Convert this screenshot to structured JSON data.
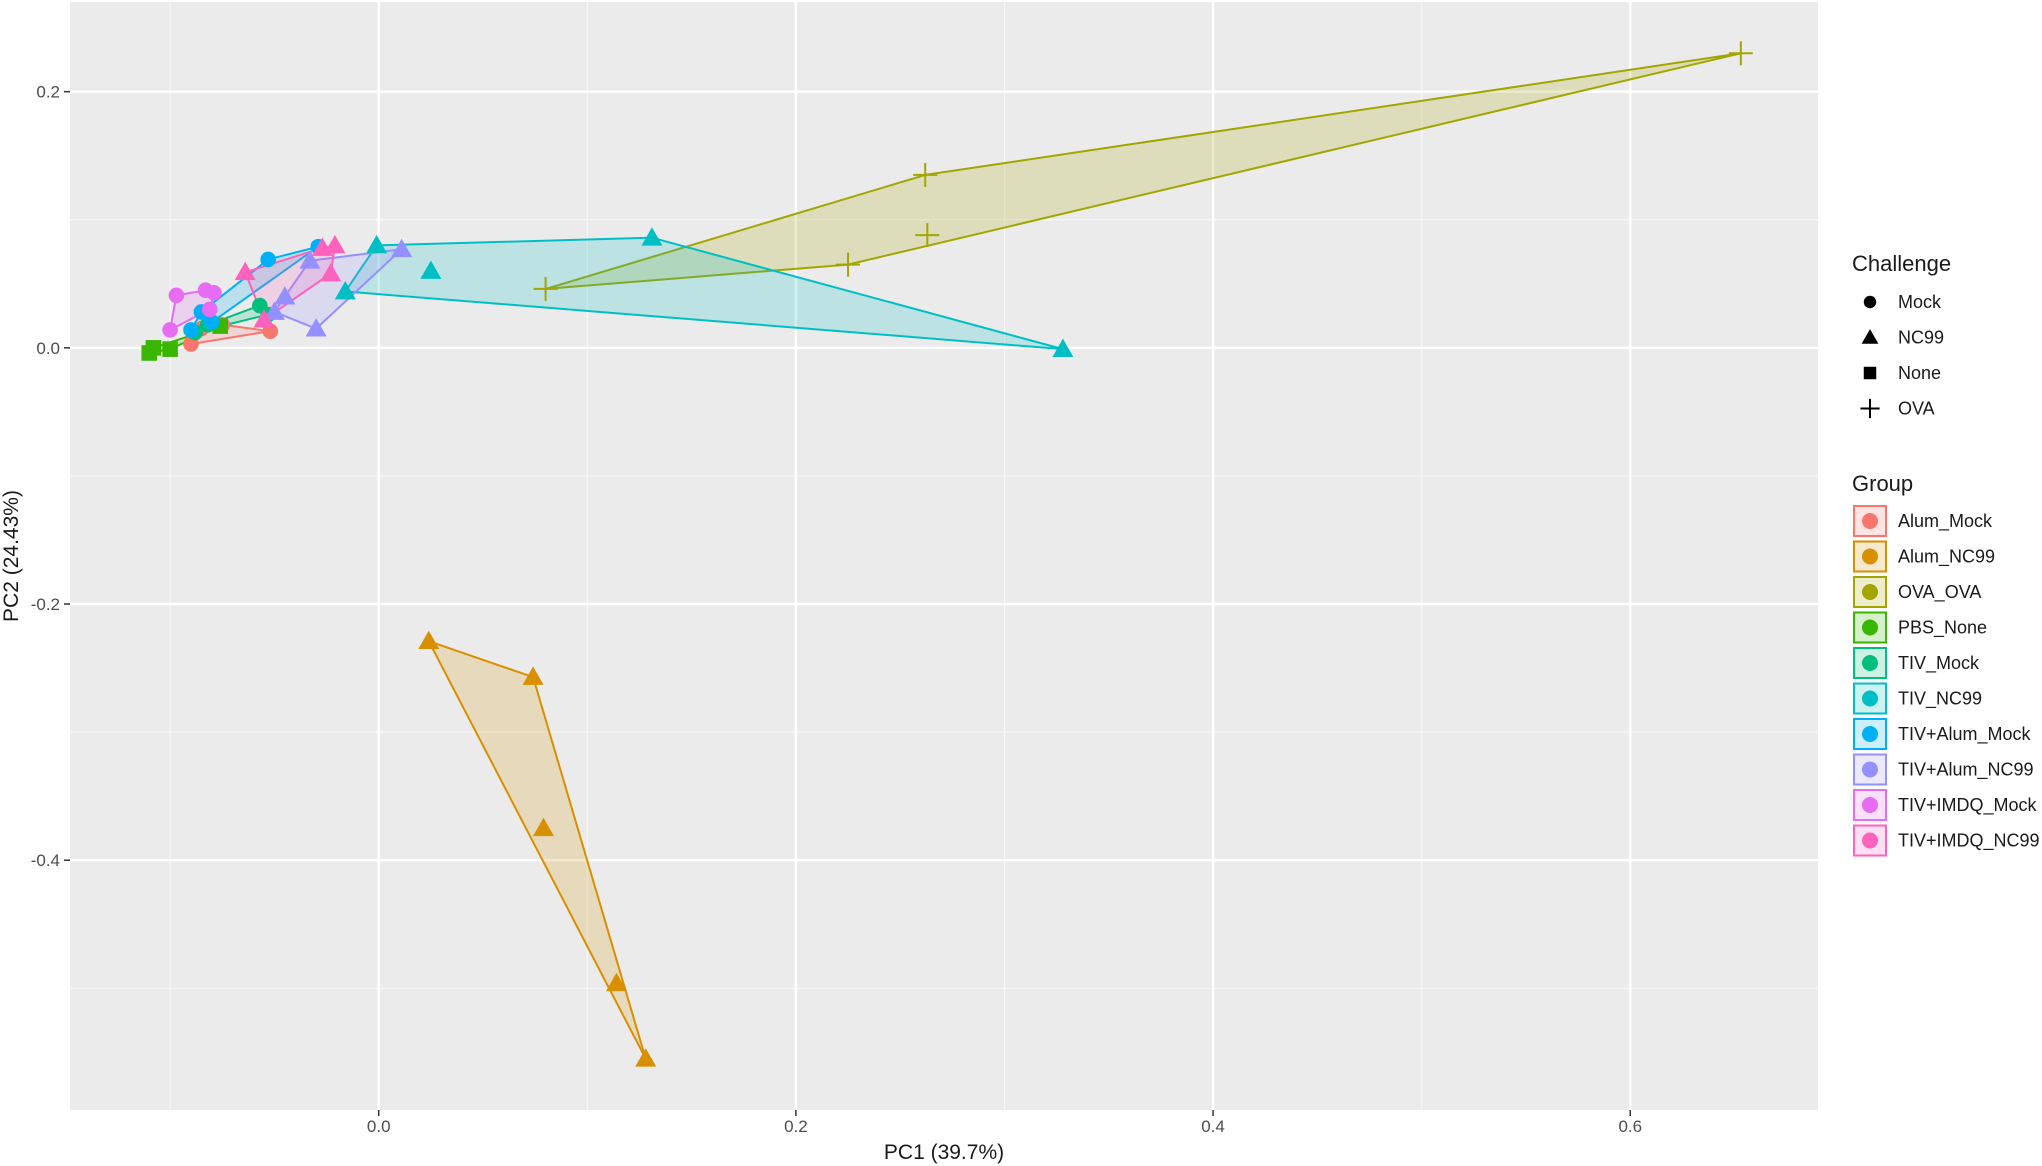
{
  "chart_data": {
    "type": "scatter",
    "xlabel": "PC1 (39.7%)",
    "ylabel": "PC2 (24.43%)",
    "xlim": [
      -0.148,
      0.69
    ],
    "ylim": [
      -0.595,
      0.27
    ],
    "x_ticks": [
      0.0,
      0.2,
      0.4,
      0.6
    ],
    "x_tick_labels": [
      "0.0",
      "0.2",
      "0.4",
      "0.6"
    ],
    "y_ticks": [
      0.2,
      0.0,
      -0.2,
      -0.4
    ],
    "y_tick_labels": [
      "0.2",
      "0.0",
      "-0.2",
      "-0.4"
    ],
    "grid": true,
    "legend_position": "right",
    "challenge_legend": {
      "title": "Challenge",
      "items": [
        {
          "label": "Mock",
          "shape": "circle"
        },
        {
          "label": "NC99",
          "shape": "triangle"
        },
        {
          "label": "None",
          "shape": "square"
        },
        {
          "label": "OVA",
          "shape": "cross"
        }
      ]
    },
    "group_legend": {
      "title": "Group",
      "items": [
        {
          "label": "Alum_Mock",
          "color": "#F8766D"
        },
        {
          "label": "Alum_NC99",
          "color": "#D89000"
        },
        {
          "label": "OVA_OVA",
          "color": "#A3A500"
        },
        {
          "label": "PBS_None",
          "color": "#39B600"
        },
        {
          "label": "TIV_Mock",
          "color": "#00BF7D"
        },
        {
          "label": "TIV_NC99",
          "color": "#00BFC4"
        },
        {
          "label": "TIV+Alum_Mock",
          "color": "#00B0F6"
        },
        {
          "label": "TIV+Alum_NC99",
          "color": "#9590FF"
        },
        {
          "label": "TIV+IMDQ_Mock",
          "color": "#E76BF3"
        },
        {
          "label": "TIV+IMDQ_NC99",
          "color": "#FF62BC"
        }
      ]
    },
    "series": [
      {
        "name": "Alum_Mock",
        "shape": "circle",
        "color": "#F8766D",
        "points": [
          [
            -0.09,
            0.003
          ],
          [
            -0.052,
            0.013
          ],
          [
            -0.075,
            0.018
          ],
          [
            -0.085,
            0.015
          ]
        ]
      },
      {
        "name": "Alum_NC99",
        "shape": "triangle",
        "color": "#D89000",
        "points": [
          [
            0.024,
            -0.229
          ],
          [
            0.074,
            -0.257
          ],
          [
            0.079,
            -0.375
          ],
          [
            0.114,
            -0.496
          ],
          [
            0.128,
            -0.555
          ]
        ]
      },
      {
        "name": "OVA_OVA",
        "shape": "cross",
        "color": "#A3A500",
        "points": [
          [
            0.08,
            0.046
          ],
          [
            0.225,
            0.065
          ],
          [
            0.263,
            0.088
          ],
          [
            0.262,
            0.135
          ],
          [
            0.653,
            0.23
          ]
        ]
      },
      {
        "name": "PBS_None",
        "shape": "square",
        "color": "#39B600",
        "points": [
          [
            -0.11,
            -0.004
          ],
          [
            -0.108,
            0.0
          ],
          [
            -0.1,
            -0.001
          ],
          [
            -0.076,
            0.017
          ]
        ]
      },
      {
        "name": "TIV_Mock",
        "shape": "circle",
        "color": "#00BF7D",
        "points": [
          [
            -0.088,
            0.012
          ],
          [
            -0.082,
            0.018
          ],
          [
            -0.057,
            0.033
          ],
          [
            -0.053,
            0.026
          ]
        ]
      },
      {
        "name": "TIV_NC99",
        "shape": "triangle",
        "color": "#00BFC4",
        "points": [
          [
            -0.016,
            0.044
          ],
          [
            -0.001,
            0.08
          ],
          [
            0.025,
            0.06
          ],
          [
            0.131,
            0.086
          ],
          [
            0.328,
            -0.001
          ]
        ]
      },
      {
        "name": "TIV+Alum_Mock",
        "shape": "circle",
        "color": "#00B0F6",
        "points": [
          [
            -0.09,
            0.014
          ],
          [
            -0.085,
            0.028
          ],
          [
            -0.08,
            0.02
          ],
          [
            -0.053,
            0.069
          ],
          [
            -0.029,
            0.079
          ]
        ]
      },
      {
        "name": "TIV+Alum_NC99",
        "shape": "triangle",
        "color": "#9590FF",
        "points": [
          [
            -0.05,
            0.028
          ],
          [
            -0.045,
            0.04
          ],
          [
            -0.033,
            0.068
          ],
          [
            -0.03,
            0.015
          ],
          [
            0.011,
            0.077
          ]
        ]
      },
      {
        "name": "TIV+IMDQ_Mock",
        "shape": "circle",
        "color": "#E76BF3",
        "points": [
          [
            -0.1,
            0.014
          ],
          [
            -0.097,
            0.041
          ],
          [
            -0.083,
            0.045
          ],
          [
            -0.081,
            0.03
          ],
          [
            -0.079,
            0.043
          ]
        ]
      },
      {
        "name": "TIV+IMDQ_NC99",
        "shape": "triangle",
        "color": "#FF62BC",
        "points": [
          [
            -0.064,
            0.059
          ],
          [
            -0.055,
            0.022
          ],
          [
            -0.027,
            0.078
          ],
          [
            -0.023,
            0.058
          ],
          [
            -0.021,
            0.08
          ]
        ]
      }
    ]
  }
}
